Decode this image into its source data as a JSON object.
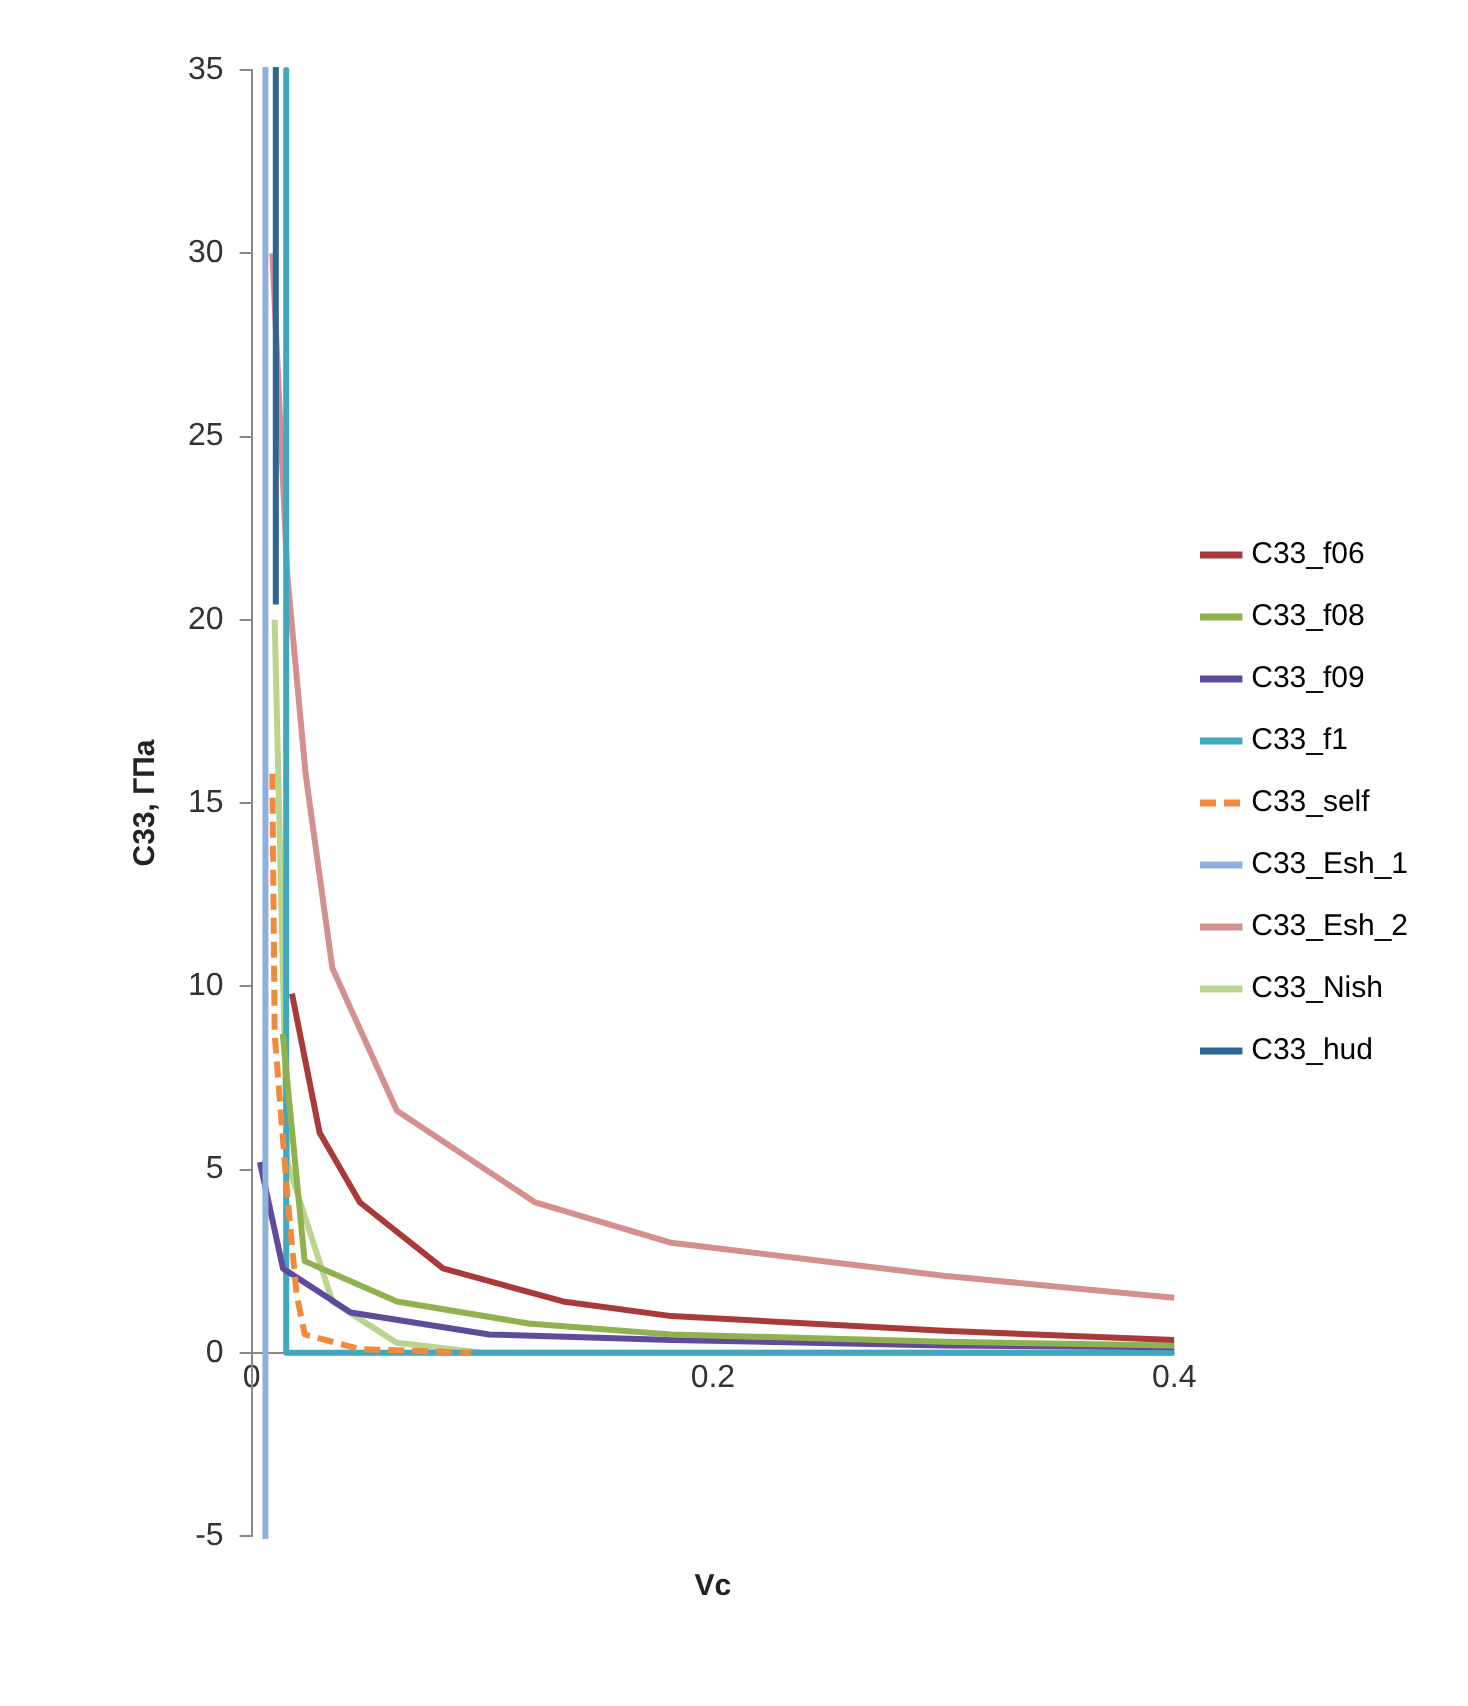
{
  "chart_data": {
    "type": "line",
    "xlabel": "Vc",
    "ylabel": "C33, ГПа",
    "xlim": [
      0,
      0.4
    ],
    "xticks": [
      0,
      0.2,
      0.4
    ],
    "ylim": [
      -5,
      35
    ],
    "yticks": [
      -5,
      0,
      5,
      10,
      15,
      20,
      25,
      30,
      35
    ],
    "grid": false,
    "legend": "right",
    "marker": "none",
    "series": [
      {
        "name": "C33_f06",
        "color": "#a83a3a",
        "x": [
          0.0175,
          0.0295,
          0.047,
          0.083,
          0.135,
          0.182,
          0.3,
          0.4
        ],
        "values": [
          9.8,
          6.0,
          4.1,
          2.3,
          1.4,
          1.0,
          0.6,
          0.35
        ]
      },
      {
        "name": "C33_f08",
        "color": "#8fb24f",
        "x": [
          0.0135,
          0.023,
          0.063,
          0.12,
          0.182,
          0.3,
          0.4
        ],
        "values": [
          8.7,
          2.5,
          1.4,
          0.8,
          0.5,
          0.3,
          0.2
        ]
      },
      {
        "name": "C33_f09",
        "color": "#5f4b9b",
        "x": [
          0.0036,
          0.0136,
          0.043,
          0.103,
          0.182,
          0.3,
          0.4
        ],
        "values": [
          5.2,
          2.3,
          1.1,
          0.5,
          0.35,
          0.2,
          0.15
        ]
      },
      {
        "name": "C33_f1",
        "color": "#3fa8bf",
        "x": [
          0.015,
          0.015,
          0.4
        ],
        "values": [
          35,
          0,
          0
        ]
      },
      {
        "name": "C33_self",
        "color": "#f08a3c",
        "line_style": "dashed",
        "x": [
          0.009,
          0.01,
          0.0155,
          0.0195,
          0.023,
          0.047,
          0.095
        ],
        "values": [
          15.8,
          8.7,
          4.3,
          1.6,
          0.5,
          0.1,
          0
        ]
      },
      {
        "name": "C33_Esh_1",
        "color": "#8fb0d8",
        "x": [
          0.006,
          0.006
        ],
        "values": [
          35,
          -5
        ]
      },
      {
        "name": "C33_Esh_2",
        "color": "#d4908f",
        "x": [
          0.009,
          0.0155,
          0.0234,
          0.035,
          0.063,
          0.123,
          0.182,
          0.3,
          0.4
        ],
        "values": [
          30,
          21.2,
          15.8,
          10.5,
          6.6,
          4.1,
          3.0,
          2.1,
          1.5
        ]
      },
      {
        "name": "C33_Nish",
        "color": "#b8d690",
        "x": [
          0.01,
          0.0155,
          0.035,
          0.063,
          0.1,
          0.4
        ],
        "values": [
          20,
          5.2,
          1.4,
          0.27,
          0,
          0
        ]
      },
      {
        "name": "C33_hud",
        "color": "#2f6496",
        "x": [
          0.0105,
          0.0105
        ],
        "values": [
          35,
          20.5
        ]
      }
    ]
  }
}
